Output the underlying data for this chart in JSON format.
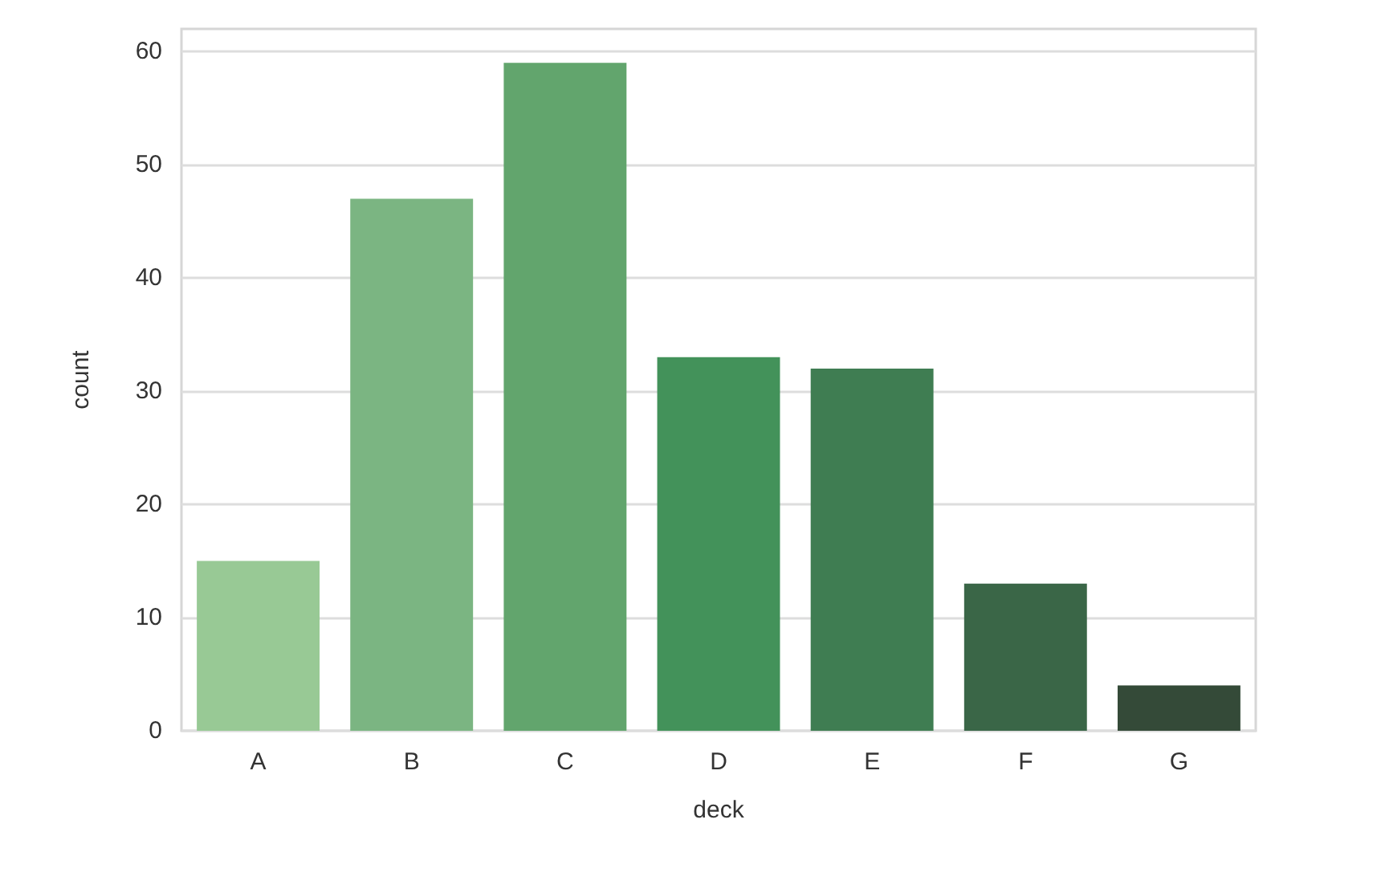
{
  "chart_data": {
    "type": "bar",
    "xlabel": "deck",
    "ylabel": "count",
    "categories": [
      "A",
      "B",
      "C",
      "D",
      "E",
      "F",
      "G"
    ],
    "values": [
      15,
      47,
      59,
      33,
      32,
      13,
      4
    ],
    "colors": [
      "#98c995",
      "#7bb582",
      "#62a56d",
      "#43925a",
      "#3f7d52",
      "#3a6647",
      "#344a38"
    ],
    "ylim": [
      0,
      62
    ],
    "yticks": [
      0,
      10,
      20,
      30,
      40,
      50,
      60
    ],
    "grid": "y"
  }
}
